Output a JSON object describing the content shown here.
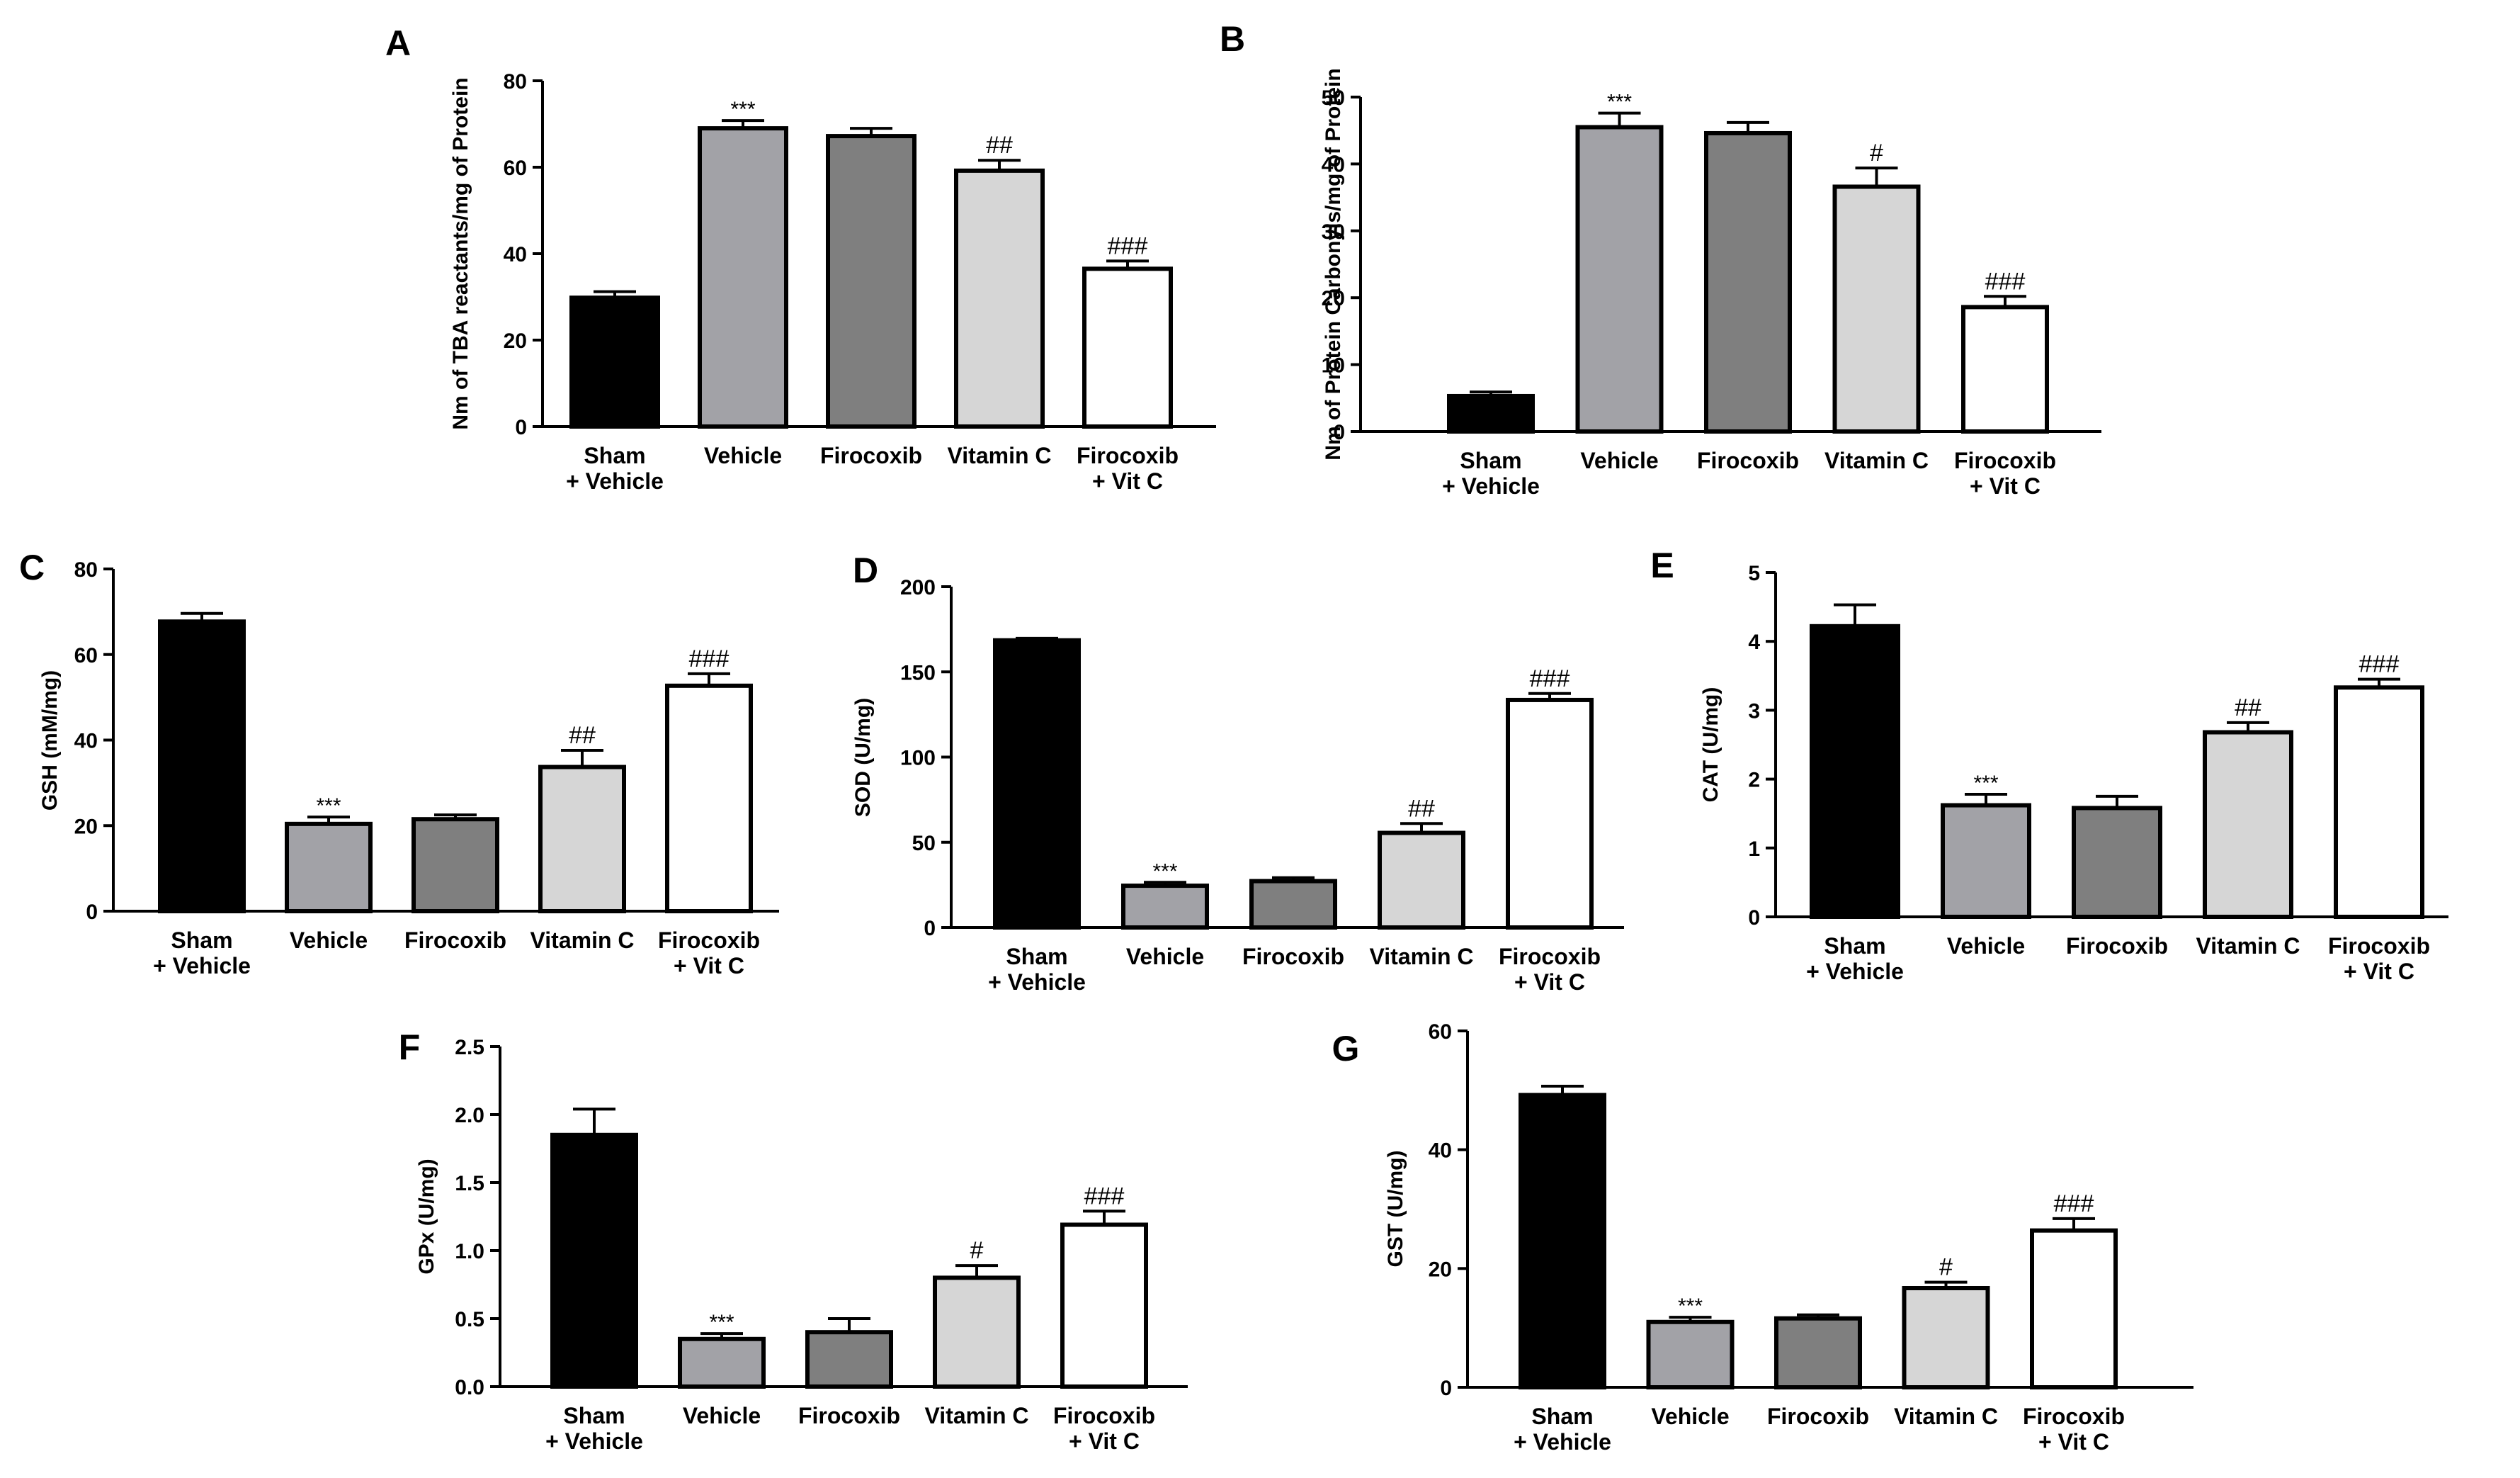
{
  "figure": {
    "colors": {
      "axis": "#000000",
      "sham": "#000000",
      "vehicle": "#a2a2a7",
      "firocoxib": "#7f7f7f",
      "vitamin_c": "#d6d6d6",
      "combo": "#ffffff"
    }
  },
  "chart_data": [
    {
      "id": "A",
      "panel_label": "A",
      "type": "bar",
      "title": "",
      "xlabel": "",
      "ylabel": "Nm of TBA reactants/mg of Protein",
      "ylim": [
        0,
        80
      ],
      "ticks": [
        "0",
        "20",
        "40",
        "60",
        "80"
      ],
      "categories": [
        [
          "Sham",
          "+ Vehicle"
        ],
        [
          "Vehicle"
        ],
        [
          "Firocoxib"
        ],
        [
          "Vitamin C"
        ],
        [
          "Firocoxib",
          "+ Vit C"
        ]
      ],
      "values": [
        29.8,
        69.0,
        67.2,
        59.2,
        36.5
      ],
      "errors": [
        1.4,
        1.8,
        1.8,
        2.4,
        1.8
      ],
      "annotations": [
        "",
        "***",
        "",
        "##",
        "###"
      ]
    },
    {
      "id": "B",
      "panel_label": "B",
      "type": "bar",
      "title": "",
      "xlabel": "",
      "ylabel": "Nm of Protein Carbonyls/mg of Protein",
      "ylim": [
        0,
        50
      ],
      "ticks": [
        "0",
        "10",
        "20",
        "30",
        "40",
        "50"
      ],
      "categories": [
        [
          "Sham",
          "+ Vehicle"
        ],
        [
          "Vehicle"
        ],
        [
          "Firocoxib"
        ],
        [
          "Vitamin C"
        ],
        [
          "Firocoxib",
          "+ Vit C"
        ]
      ],
      "values": [
        5.3,
        45.5,
        44.6,
        36.6,
        18.6
      ],
      "errors": [
        0.6,
        2.1,
        1.6,
        2.8,
        1.6
      ],
      "annotations": [
        "",
        "***",
        "",
        "#",
        "###"
      ]
    },
    {
      "id": "C",
      "panel_label": "C",
      "type": "bar",
      "title": "",
      "xlabel": "",
      "ylabel": "GSH (mM/mg)",
      "ylim": [
        0,
        80
      ],
      "ticks": [
        "0",
        "20",
        "40",
        "60",
        "80"
      ],
      "categories": [
        [
          "Sham",
          "+ Vehicle"
        ],
        [
          "Vehicle"
        ],
        [
          "Firocoxib"
        ],
        [
          "Vitamin C"
        ],
        [
          "Firocoxib",
          "+ Vit C"
        ]
      ],
      "values": [
        67.7,
        20.4,
        21.5,
        33.7,
        52.7
      ],
      "errors": [
        1.9,
        1.6,
        1.0,
        3.9,
        2.8
      ],
      "annotations": [
        "",
        "***",
        "",
        "##",
        "###"
      ]
    },
    {
      "id": "D",
      "panel_label": "D",
      "type": "bar",
      "title": "",
      "xlabel": "",
      "ylabel": "SOD (U/mg)",
      "ylim": [
        0,
        200
      ],
      "ticks": [
        "0",
        "50",
        "100",
        "150",
        "200"
      ],
      "categories": [
        [
          "Sham",
          "+ Vehicle"
        ],
        [
          "Vehicle"
        ],
        [
          "Firocoxib"
        ],
        [
          "Vitamin C"
        ],
        [
          "Firocoxib",
          "+ Vit C"
        ]
      ],
      "values": [
        168.5,
        24.5,
        27.2,
        55.5,
        133.5
      ],
      "errors": [
        1.2,
        2.0,
        2.0,
        5.5,
        3.8
      ],
      "annotations": [
        "",
        "***",
        "",
        "##",
        "###"
      ]
    },
    {
      "id": "E",
      "panel_label": "E",
      "type": "bar",
      "title": "",
      "xlabel": "",
      "ylabel": "CAT (U/mg)",
      "ylim": [
        0,
        5
      ],
      "ticks": [
        "0",
        "1",
        "2",
        "3",
        "4",
        "5"
      ],
      "categories": [
        [
          "Sham",
          "+ Vehicle"
        ],
        [
          "Vehicle"
        ],
        [
          "Firocoxib"
        ],
        [
          "Vitamin C"
        ],
        [
          "Firocoxib",
          "+ Vit C"
        ]
      ],
      "values": [
        4.22,
        1.62,
        1.58,
        2.68,
        3.33
      ],
      "errors": [
        0.31,
        0.16,
        0.17,
        0.14,
        0.12
      ],
      "annotations": [
        "",
        "***",
        "",
        "##",
        "###"
      ]
    },
    {
      "id": "F",
      "panel_label": "F",
      "type": "bar",
      "title": "",
      "xlabel": "",
      "ylabel": "GPx (U/mg)",
      "ylim": [
        0,
        2.5
      ],
      "ticks": [
        "0.0",
        "0.5",
        "1.0",
        "1.5",
        "2.0",
        "2.5"
      ],
      "categories": [
        [
          "Sham",
          "+ Vehicle"
        ],
        [
          "Vehicle"
        ],
        [
          "Firocoxib"
        ],
        [
          "Vitamin C"
        ],
        [
          "Firocoxib",
          "+ Vit C"
        ]
      ],
      "values": [
        1.85,
        0.35,
        0.4,
        0.8,
        1.19
      ],
      "errors": [
        0.19,
        0.04,
        0.1,
        0.09,
        0.1
      ],
      "annotations": [
        "",
        "***",
        "",
        "#",
        "###"
      ]
    },
    {
      "id": "G",
      "panel_label": "G",
      "type": "bar",
      "title": "",
      "xlabel": "",
      "ylabel": "GST (U/mg)",
      "ylim": [
        0,
        60
      ],
      "ticks": [
        "0",
        "20",
        "40",
        "60"
      ],
      "categories": [
        [
          "Sham",
          "+ Vehicle"
        ],
        [
          "Vehicle"
        ],
        [
          "Firocoxib"
        ],
        [
          "Vitamin C"
        ],
        [
          "Firocoxib",
          "+ Vit C"
        ]
      ],
      "values": [
        49.2,
        11.0,
        11.6,
        16.7,
        26.4
      ],
      "errors": [
        1.5,
        0.8,
        0.6,
        1.0,
        2.0
      ],
      "annotations": [
        "",
        "***",
        "",
        "#",
        "###"
      ]
    }
  ]
}
